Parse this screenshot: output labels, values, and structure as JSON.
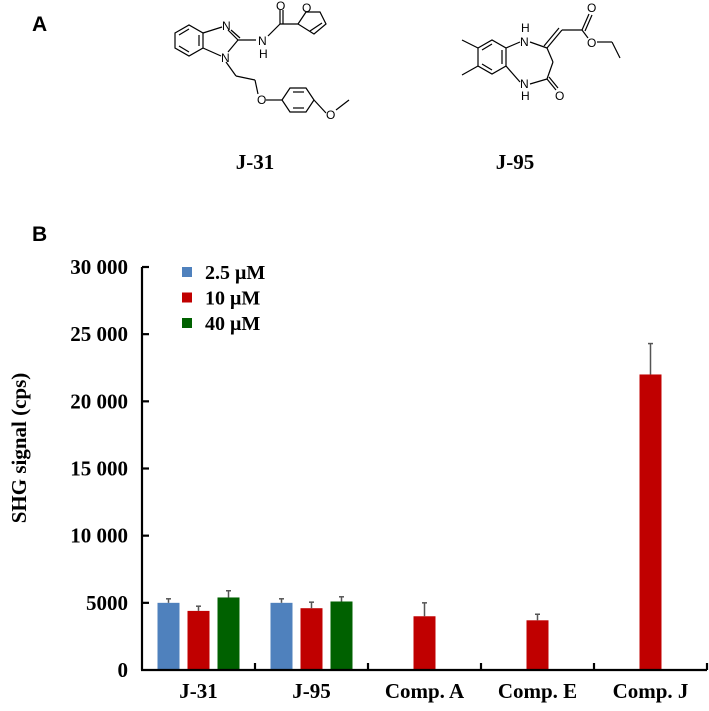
{
  "panel_a": {
    "label": "A",
    "compounds": [
      {
        "name": "J-31",
        "atoms": [
          "N",
          "N",
          "N",
          "H",
          "O",
          "O",
          "O",
          "O"
        ]
      },
      {
        "name": "J-95",
        "atoms": [
          "N",
          "H",
          "N",
          "H",
          "O",
          "O",
          "O"
        ]
      }
    ]
  },
  "panel_b": {
    "label": "B"
  },
  "colors": {
    "blue": "#4f81bd",
    "red": "#c00000",
    "green": "#006100",
    "axis": "#000000",
    "errorbar": "#555555"
  },
  "chart_data": {
    "type": "bar",
    "title": "",
    "xlabel": "",
    "ylabel": "SHG signal (cps)",
    "ylim": [
      0,
      30000
    ],
    "yticks": [
      0,
      5000,
      10000,
      15000,
      20000,
      25000,
      30000
    ],
    "ytick_labels": [
      "0",
      "5000",
      "10 000",
      "15 000",
      "20 000",
      "25 000",
      "30 000"
    ],
    "grid": false,
    "legend_position": "upper-left",
    "categories": [
      "J-31",
      "J-95",
      "Comp. A",
      "Comp. E",
      "Comp. J"
    ],
    "series": [
      {
        "name": "2.5 μM",
        "color": "#4f81bd",
        "values": [
          5000,
          5000,
          null,
          null,
          null
        ],
        "errors": [
          300,
          300,
          null,
          null,
          null
        ]
      },
      {
        "name": "10 μM",
        "color": "#c00000",
        "values": [
          4400,
          4600,
          4000,
          3700,
          22000
        ],
        "errors": [
          350,
          450,
          1000,
          450,
          2300
        ]
      },
      {
        "name": "40 μM",
        "color": "#006100",
        "values": [
          5400,
          5100,
          null,
          null,
          null
        ],
        "errors": [
          500,
          350,
          null,
          null,
          null
        ]
      }
    ]
  }
}
